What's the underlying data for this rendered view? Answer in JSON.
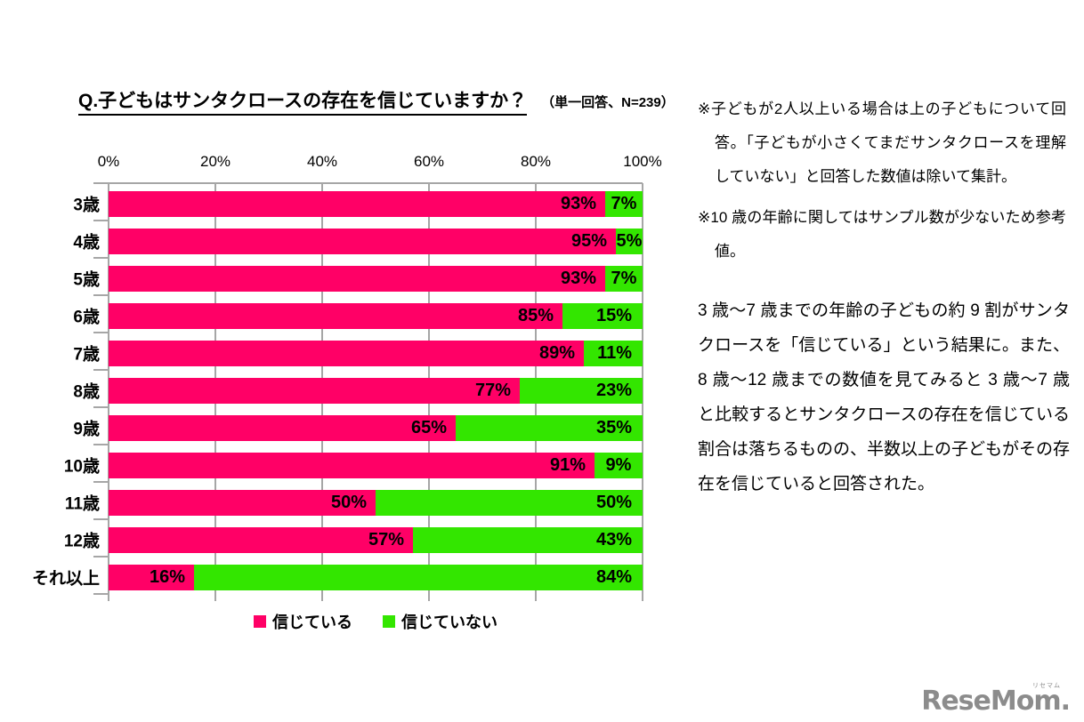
{
  "title": {
    "text": "Q.子どもはサンタクロースの存在を信じていますか？",
    "suffix": "（単一回答、N=239）"
  },
  "chart_data": {
    "type": "bar",
    "variant": "horizontal-stacked-100pct",
    "categories": [
      "3歳",
      "4歳",
      "5歳",
      "6歳",
      "7歳",
      "8歳",
      "9歳",
      "10歳",
      "11歳",
      "12歳",
      "それ以上"
    ],
    "series": [
      {
        "name": "信じている",
        "color": "#ff0066",
        "values": [
          93,
          95,
          93,
          85,
          89,
          77,
          65,
          91,
          50,
          57,
          16
        ]
      },
      {
        "name": "信じていない",
        "color": "#33e600",
        "values": [
          7,
          5,
          7,
          15,
          11,
          23,
          35,
          9,
          50,
          43,
          84
        ]
      }
    ],
    "value_suffix": "%",
    "x_ticks": [
      "0%",
      "20%",
      "40%",
      "60%",
      "80%",
      "100%"
    ],
    "xlim": [
      0,
      100
    ],
    "grid": true,
    "gridline_color": "#a6a6a6",
    "legend_position": "bottom"
  },
  "notes": [
    "※子どもが2人以上いる場合は上の子どもについて回答。「子どもが小さくてまだサンタクロースを理解していない」と回答した数値は除いて集計。",
    "※10 歳の年齢に関してはサンプル数が少ないため参考値。"
  ],
  "summary": "3 歳～7 歳までの年齢の子どもの約 9 割がサンタクロースを「信じている」という結果に。また、8 歳～12 歳までの数値を見てみると 3 歳～7 歳と比較するとサンタクロースの存在を信じている割合は落ちるものの、半数以上の子どもがその存在を信じていると回答された。",
  "logo": {
    "text": "ReseMom.",
    "ruby": "リセマム"
  }
}
